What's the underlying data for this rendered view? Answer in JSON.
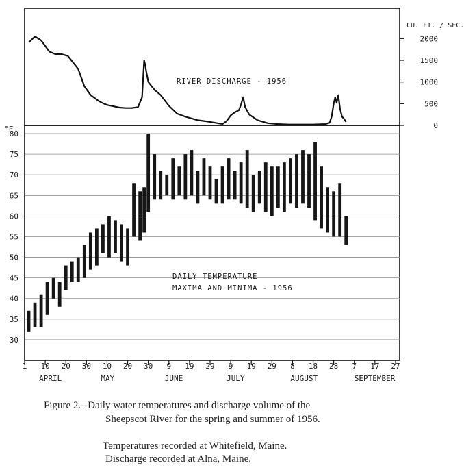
{
  "chart_data": [
    {
      "type": "line",
      "title": "RIVER DISCHARGE - 1956",
      "unit_label": "CU. FT. / SEC.",
      "yticks": [
        "2000",
        "1500",
        "1000",
        "500",
        "0"
      ],
      "ylim": [
        0,
        2700
      ],
      "x_unit": "day of year 1956 (tick 1 = April 1)",
      "xlim": [
        92,
        274
      ],
      "series": [
        {
          "x": [
            94,
            97,
            100,
            104,
            107,
            110,
            113,
            118,
            121,
            124,
            128,
            130,
            132,
            135,
            138,
            141,
            144,
            147,
            149,
            150,
            150.5,
            151,
            152,
            155,
            158,
            162,
            166,
            170,
            176,
            182,
            188,
            190,
            192,
            194,
            196,
            197,
            198,
            199,
            201,
            205,
            210,
            215,
            220,
            226,
            232,
            238,
            240,
            241,
            242,
            242.7,
            243.4,
            244.2,
            245,
            246,
            247,
            248
          ],
          "y": [
            1910,
            2050,
            1960,
            1700,
            1640,
            1640,
            1600,
            1300,
            900,
            700,
            560,
            510,
            470,
            440,
            410,
            400,
            400,
            420,
            650,
            1500,
            1400,
            1250,
            1000,
            820,
            700,
            450,
            270,
            200,
            120,
            80,
            30,
            100,
            230,
            300,
            350,
            480,
            650,
            420,
            250,
            120,
            50,
            30,
            20,
            20,
            20,
            30,
            60,
            200,
            500,
            650,
            520,
            700,
            400,
            200,
            150,
            80
          ]
        }
      ]
    },
    {
      "type": "bar",
      "subtype": "daily min-max range",
      "annotation": [
        "DAILY TEMPERATURE",
        "MAXIMA AND MINIMA - 1956"
      ],
      "y_unit_label": "°F",
      "yticks": [
        "80",
        "75",
        "70",
        "65",
        "60",
        "55",
        "50",
        "45",
        "40",
        "35",
        "30"
      ],
      "ylim": [
        25,
        82
      ],
      "xtick_labels": [
        "1",
        "10",
        "20",
        "30",
        "10",
        "20",
        "30",
        "9",
        "19",
        "29",
        "9",
        "19",
        "29",
        "8",
        "18",
        "28",
        "7",
        "17",
        "27"
      ],
      "month_labels": [
        "APRIL",
        "MAY",
        "JUNE",
        "JULY",
        "AUGUST",
        "SEPTEMBER"
      ],
      "x_unit": "day of year 1956 (tick 1 = April 1)",
      "xlim": [
        92,
        274
      ],
      "series": [
        {
          "name": "",
          "x": [
            94,
            97,
            100,
            103,
            106,
            109,
            112,
            115,
            118,
            121,
            124,
            127,
            130,
            133,
            136,
            139,
            142,
            145,
            148,
            150,
            152,
            155,
            158,
            161,
            164,
            167,
            170,
            173,
            176,
            179,
            182,
            185,
            188,
            191,
            194,
            197,
            200,
            203,
            206,
            209,
            212,
            215,
            218,
            221,
            224,
            227,
            230,
            233,
            236,
            239,
            242,
            245,
            248
          ],
          "min": [
            32,
            33,
            33,
            36,
            40,
            38,
            42,
            44,
            44,
            45,
            47,
            48,
            51,
            50,
            51,
            49,
            48,
            55,
            54,
            56,
            61,
            64,
            64,
            65,
            64,
            65,
            64,
            65,
            63,
            65,
            64,
            63,
            63,
            64,
            64,
            63,
            62,
            61,
            63,
            61,
            60,
            62,
            61,
            63,
            62,
            63,
            62,
            59,
            57,
            56,
            55,
            55,
            53
          ],
          "max": [
            37,
            39,
            41,
            44,
            45,
            44,
            48,
            49,
            50,
            53,
            56,
            57,
            58,
            60,
            59,
            58,
            57,
            68,
            66,
            67,
            80,
            75,
            71,
            70,
            74,
            72,
            75,
            76,
            71,
            74,
            72,
            69,
            72,
            74,
            71,
            73,
            76,
            70,
            71,
            73,
            72,
            72,
            73,
            74,
            75,
            76,
            75,
            78,
            72,
            67,
            66,
            68,
            60
          ]
        }
      ]
    }
  ],
  "caption": {
    "line1": "Figure 2.--Daily water temperatures and discharge volume of the",
    "line2": "Sheepscot River for the spring and summer of 1956.",
    "line3": "Temperatures recorded at Whitefield, Maine.",
    "line4": "Discharge recorded at Alna, Maine."
  }
}
